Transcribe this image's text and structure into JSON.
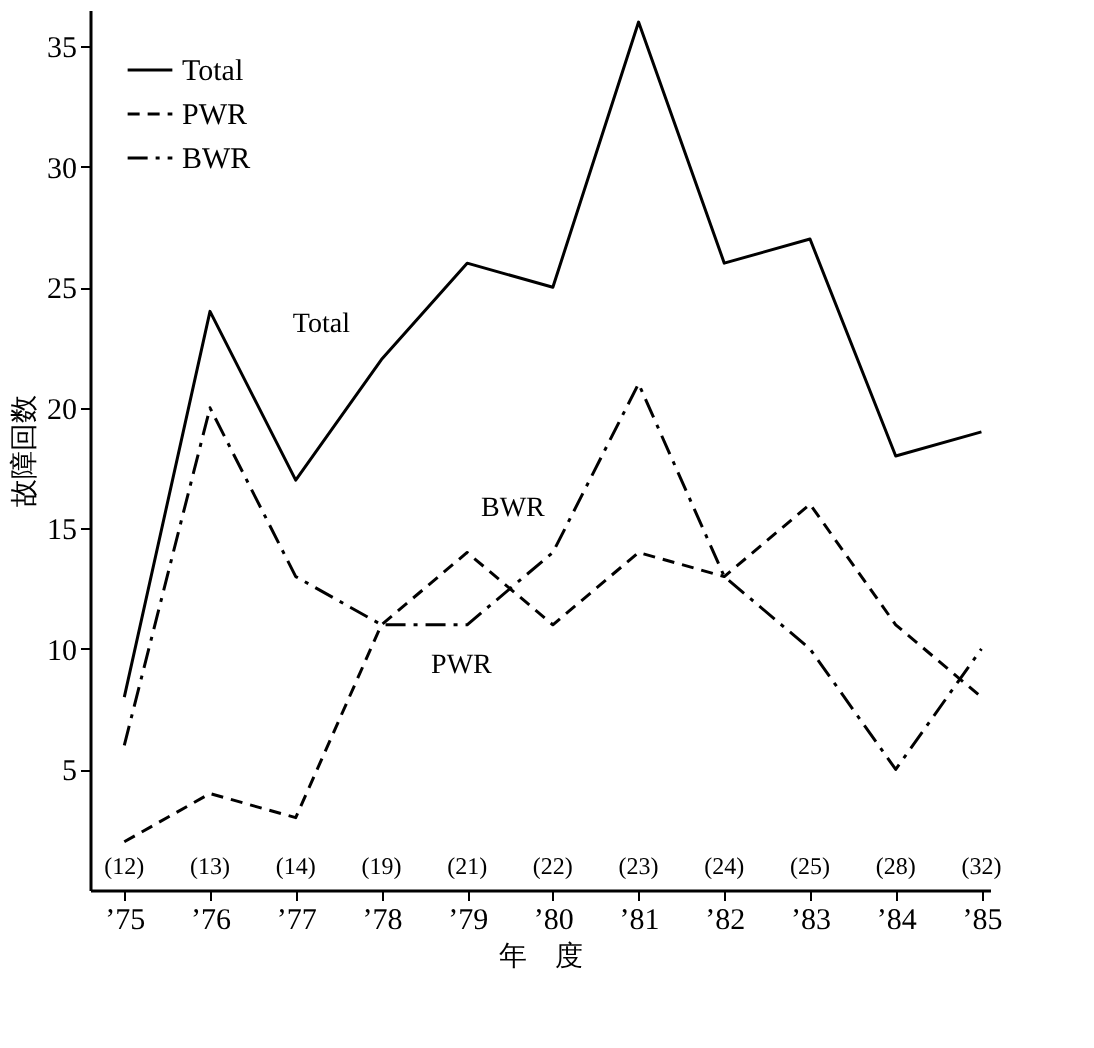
{
  "chart_data": {
    "type": "line",
    "xlabel": "年　度",
    "ylabel": "故障回数",
    "categories": [
      "’75",
      "’76",
      "’77",
      "’78",
      "’79",
      "’80",
      "’81",
      "’82",
      "’83",
      "’84",
      "’85"
    ],
    "series": [
      {
        "name": "Total",
        "color": "#000000",
        "line_style": "solid",
        "values": [
          8,
          24,
          17,
          22,
          26,
          25,
          36,
          26,
          27,
          18,
          19
        ]
      },
      {
        "name": "PWR",
        "color": "#000000",
        "line_style": "dashed",
        "values": [
          2,
          4,
          3,
          11,
          14,
          11,
          14,
          13,
          16,
          11,
          8
        ]
      },
      {
        "name": "BWR",
        "color": "#000000",
        "line_style": "dashdot",
        "values": [
          6,
          20,
          13,
          11,
          11,
          14,
          21,
          13,
          10,
          5,
          10
        ]
      }
    ],
    "ylim": [
      0,
      36.5
    ],
    "yticks": [
      5,
      10,
      15,
      20,
      25,
      30,
      35
    ],
    "grid": false,
    "legend": "top left",
    "marker": "none",
    "annotations": [
      {
        "text": "Total",
        "x": "’78",
        "y": 22
      },
      {
        "text": "BWR",
        "x": "’80",
        "y": 14
      },
      {
        "text": "PWR",
        "x": "’78",
        "y": 11
      },
      "(12)",
      "(13)",
      "(14)",
      "(19)",
      "(21)",
      "(22)",
      "(23)",
      "(24)",
      "(25)",
      "(28)",
      "(32)"
    ]
  }
}
